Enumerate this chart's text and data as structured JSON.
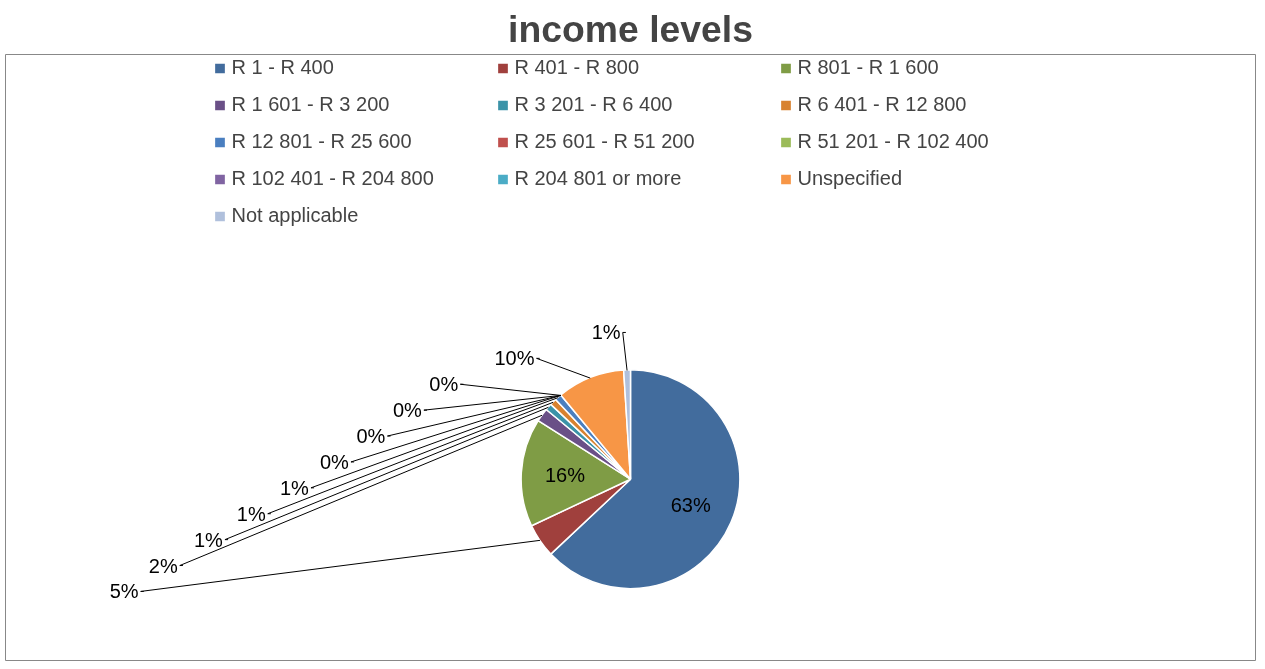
{
  "chart_data": {
    "type": "pie",
    "title": "income levels",
    "categories": [
      "R 1 - R 400",
      "R 401 - R 800",
      "R 801 - R 1 600",
      "R 1 601 - R 3 200",
      "R 3 201 - R 6 400",
      "R 6 401 - R 12 800",
      "R 12 801 - R 25 600",
      "R 25 601 - R 51 200",
      "R 51 201 - R 102 400",
      "R 102 401 - R 204 800",
      "R 204 801 or more",
      "Unspecified",
      "Not applicable"
    ],
    "values": [
      63,
      5,
      16,
      2,
      1,
      1,
      1,
      0,
      0,
      0,
      0,
      10,
      1
    ],
    "value_labels": [
      "63%",
      "5%",
      "16%",
      "2%",
      "1%",
      "1%",
      "1%",
      "0%",
      "0%",
      "0%",
      "0%",
      "10%",
      "1%"
    ],
    "colors": [
      "#426c9d",
      "#a0403d",
      "#7f9c45",
      "#6a5087",
      "#3b93a8",
      "#d8822f",
      "#4a7fc0",
      "#c0504d",
      "#9bbb59",
      "#8064a2",
      "#4bacc6",
      "#f79646",
      "#b0c0dc"
    ],
    "legend": "top"
  }
}
